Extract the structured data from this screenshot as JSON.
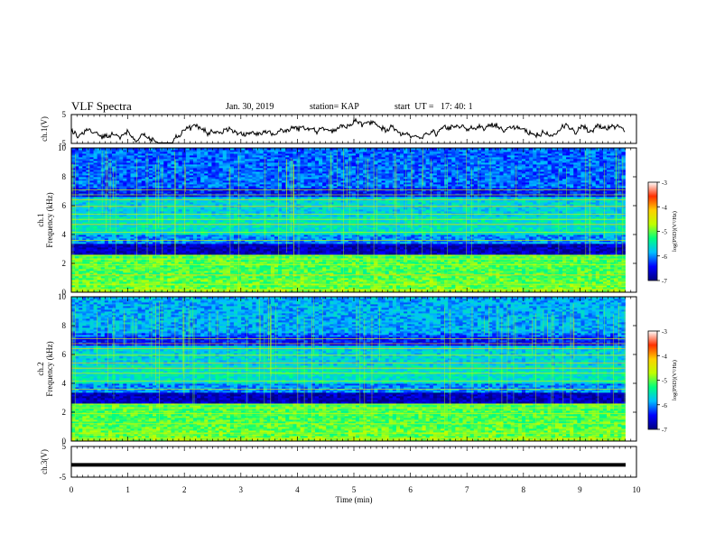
{
  "header": {
    "title": "VLF Spectra",
    "date": "Jan. 30, 2019",
    "station": "station= KAP",
    "start": "start  UT =   17: 40: 1"
  },
  "chart_data": {
    "type": "heatmap",
    "xlabel": "Time  (min)",
    "xlim": [
      0,
      10
    ],
    "xticks": [
      0,
      1,
      2,
      3,
      4,
      5,
      6,
      7,
      8,
      9,
      10
    ],
    "data_end_min": 9.8,
    "panels": [
      {
        "name": "ch.1 waveform",
        "type": "line",
        "ylabel": "ch.1(V)",
        "ylim": [
          -5,
          5
        ],
        "yticks": [
          5,
          -5
        ]
      },
      {
        "name": "ch.1 spectrogram",
        "type": "heatmap",
        "ylabel_top": "ch.1",
        "ylabel": "Frequency  (kHz)",
        "ylim": [
          0,
          10
        ],
        "yticks": [
          0,
          2,
          4,
          6,
          8,
          10
        ]
      },
      {
        "name": "ch.2 spectrogram",
        "type": "heatmap",
        "ylabel_top": "ch.2",
        "ylabel": "Frequency  (kHz)",
        "ylim": [
          0,
          10
        ],
        "yticks": [
          0,
          2,
          4,
          6,
          8,
          10
        ]
      },
      {
        "name": "ch.3 waveform",
        "type": "line",
        "ylabel": "ch.3(V)",
        "ylim": [
          -5,
          5
        ],
        "yticks": [
          5,
          -5
        ],
        "constant_value": -1
      }
    ],
    "colorbar": {
      "label": "log(PSD)(V²/Hz)",
      "range": [
        -7,
        -3
      ],
      "ticks": [
        -3,
        -4,
        -5,
        -6,
        -7
      ],
      "colormap": [
        "#00007f",
        "#0000ff",
        "#00bfff",
        "#00ff7f",
        "#bfff00",
        "#ffd000",
        "#ff3000",
        "#ffffff"
      ]
    },
    "line_color": "#000000"
  }
}
